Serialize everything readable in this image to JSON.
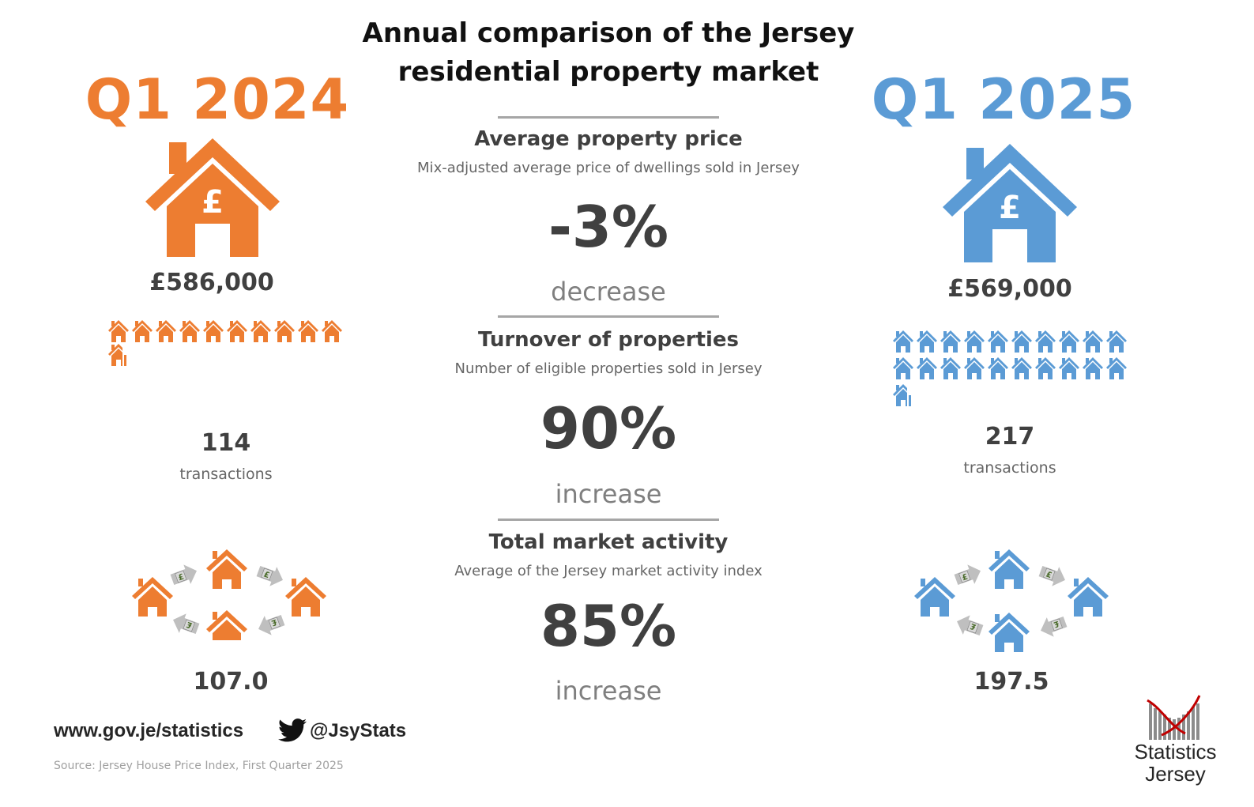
{
  "title": "Annual comparison of the Jersey residential property market",
  "left": {
    "year": "Q1 2024",
    "price": "£586,000",
    "transactions": "114",
    "transactions_label": "transactions",
    "activity": "107.0",
    "color": "#ED7D31"
  },
  "right": {
    "year": "Q1 2025",
    "price": "£569,000",
    "transactions": "217",
    "transactions_label": "transactions",
    "activity": "197.5",
    "color": "#5B9BD5"
  },
  "sections": [
    {
      "title": "Average property price",
      "subtitle": "Mix-adjusted average price of dwellings sold in Jersey",
      "change": "-3%",
      "direction": "decrease"
    },
    {
      "title": "Turnover of properties",
      "subtitle": "Number of eligible properties sold in Jersey",
      "change": "90%",
      "direction": "increase"
    },
    {
      "title": "Total market activity",
      "subtitle": "Average of the Jersey market activity index",
      "change": "85%",
      "direction": "increase"
    }
  ],
  "footer": {
    "website": "www.gov.je/statistics",
    "twitter": "@JsyStats",
    "source": "Source: Jersey House Price Index, First Quarter 2025"
  },
  "logo": {
    "line1": "Statistics",
    "line2": "Jersey"
  },
  "icons": {
    "pound": "£",
    "house_pound": "house-pound-icon",
    "house_row": "house-icon",
    "twitter": "twitter-bird-icon",
    "exchange_arrow": "arrow-icon"
  }
}
